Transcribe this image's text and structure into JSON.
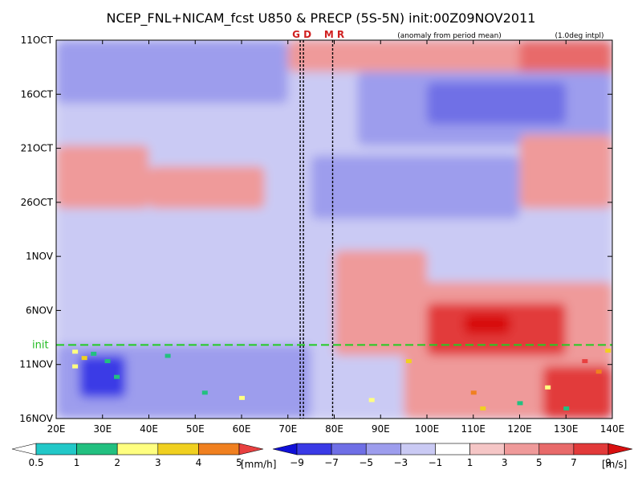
{
  "chart_data": {
    "type": "heatmap",
    "title": "NCEP_FNL+NICAM_fcst U850 & PRECP (5S-5N) init:00Z09NOV2011",
    "subtitle": "(anomaly from period mean)",
    "note": "(1.0deg intpl)",
    "x_ticks": [
      "20E",
      "30E",
      "40E",
      "50E",
      "60E",
      "70E",
      "80E",
      "90E",
      "100E",
      "110E",
      "120E",
      "130E",
      "140E"
    ],
    "x_range": [
      20,
      140
    ],
    "y_ticks": [
      "11OCT",
      "16OCT",
      "21OCT",
      "26OCT",
      "1NOV",
      "6NOV",
      "11NOV",
      "16NOV"
    ],
    "y_range_days": [
      0,
      36
    ],
    "init_label": "init",
    "init_day": 29,
    "vertical_lines": [
      {
        "label": "G D",
        "lon": 73
      },
      {
        "label": "M R",
        "lon": 80
      }
    ],
    "u850_colorbar": {
      "levels": [
        "−9",
        "−7",
        "−5",
        "−3",
        "−1",
        "1",
        "3",
        "5",
        "7",
        "9"
      ],
      "colors": [
        "#1010d8",
        "#3a3ae6",
        "#6f6fe6",
        "#9d9ded",
        "#cacaf4",
        "#ffffff",
        "#f5c6c6",
        "#ef9a9a",
        "#e86a6a",
        "#e23a3a",
        "#d81010"
      ],
      "unit": "[m/s]"
    },
    "precip_colorbar": {
      "levels": [
        "0.5",
        "1",
        "2",
        "3",
        "4",
        "5"
      ],
      "colors": [
        "#ffffff",
        "#22c8c8",
        "#22c080",
        "#ffff80",
        "#f0d020",
        "#f08020",
        "#e84040"
      ],
      "unit": "[mm/h]"
    },
    "anomaly_regions": [
      {
        "lon": [
          20,
          140
        ],
        "day": [
          0,
          36
        ],
        "u": -1.5
      },
      {
        "lon": [
          20,
          70
        ],
        "day": [
          0,
          6
        ],
        "u": -4
      },
      {
        "lon": [
          70,
          140
        ],
        "day": [
          0,
          3
        ],
        "u": 3
      },
      {
        "lon": [
          120,
          140
        ],
        "day": [
          0,
          5
        ],
        "u": 5
      },
      {
        "lon": [
          85,
          140
        ],
        "day": [
          3,
          10
        ],
        "u": -5
      },
      {
        "lon": [
          100,
          130
        ],
        "day": [
          4,
          8
        ],
        "u": -7
      },
      {
        "lon": [
          20,
          40
        ],
        "day": [
          10,
          16
        ],
        "u": 3
      },
      {
        "lon": [
          40,
          65
        ],
        "day": [
          12,
          16
        ],
        "u": 3
      },
      {
        "lon": [
          75,
          120
        ],
        "day": [
          11,
          17
        ],
        "u": -4
      },
      {
        "lon": [
          120,
          140
        ],
        "day": [
          9,
          16
        ],
        "u": 3
      },
      {
        "lon": [
          20,
          60
        ],
        "day": [
          17,
          21
        ],
        "u": -3
      },
      {
        "lon": [
          80,
          100
        ],
        "day": [
          20,
          30
        ],
        "u": 3
      },
      {
        "lon": [
          95,
          140
        ],
        "day": [
          23,
          36
        ],
        "u": 4
      },
      {
        "lon": [
          100,
          130
        ],
        "day": [
          25,
          30
        ],
        "u": 7
      },
      {
        "lon": [
          108,
          118
        ],
        "day": [
          26,
          28
        ],
        "u": 9
      },
      {
        "lon": [
          20,
          75
        ],
        "day": [
          29,
          36
        ],
        "u": -4
      },
      {
        "lon": [
          25,
          35
        ],
        "day": [
          30,
          34
        ],
        "u": -8
      },
      {
        "lon": [
          125,
          140
        ],
        "day": [
          31,
          36
        ],
        "u": 8
      }
    ],
    "precip_cells": [
      {
        "lon": 24,
        "day": 29.6,
        "mm": 2
      },
      {
        "lon": 26,
        "day": 30.2,
        "mm": 3
      },
      {
        "lon": 28,
        "day": 29.8,
        "mm": 1
      },
      {
        "lon": 31,
        "day": 30.5,
        "mm": 1
      },
      {
        "lon": 24,
        "day": 31.0,
        "mm": 2
      },
      {
        "lon": 33,
        "day": 32.0,
        "mm": 1
      },
      {
        "lon": 44,
        "day": 30.0,
        "mm": 1
      },
      {
        "lon": 52,
        "day": 33.5,
        "mm": 1
      },
      {
        "lon": 60,
        "day": 34.0,
        "mm": 2
      },
      {
        "lon": 96,
        "day": 30.5,
        "mm": 3
      },
      {
        "lon": 110,
        "day": 33.5,
        "mm": 4
      },
      {
        "lon": 112,
        "day": 35.0,
        "mm": 3
      },
      {
        "lon": 126,
        "day": 33.0,
        "mm": 2
      },
      {
        "lon": 134,
        "day": 30.5,
        "mm": 5
      },
      {
        "lon": 137,
        "day": 31.5,
        "mm": 4
      },
      {
        "lon": 139,
        "day": 29.5,
        "mm": 3
      },
      {
        "lon": 130,
        "day": 35.0,
        "mm": 1
      },
      {
        "lon": 88,
        "day": 34.2,
        "mm": 2
      },
      {
        "lon": 120,
        "day": 34.5,
        "mm": 1
      }
    ]
  }
}
